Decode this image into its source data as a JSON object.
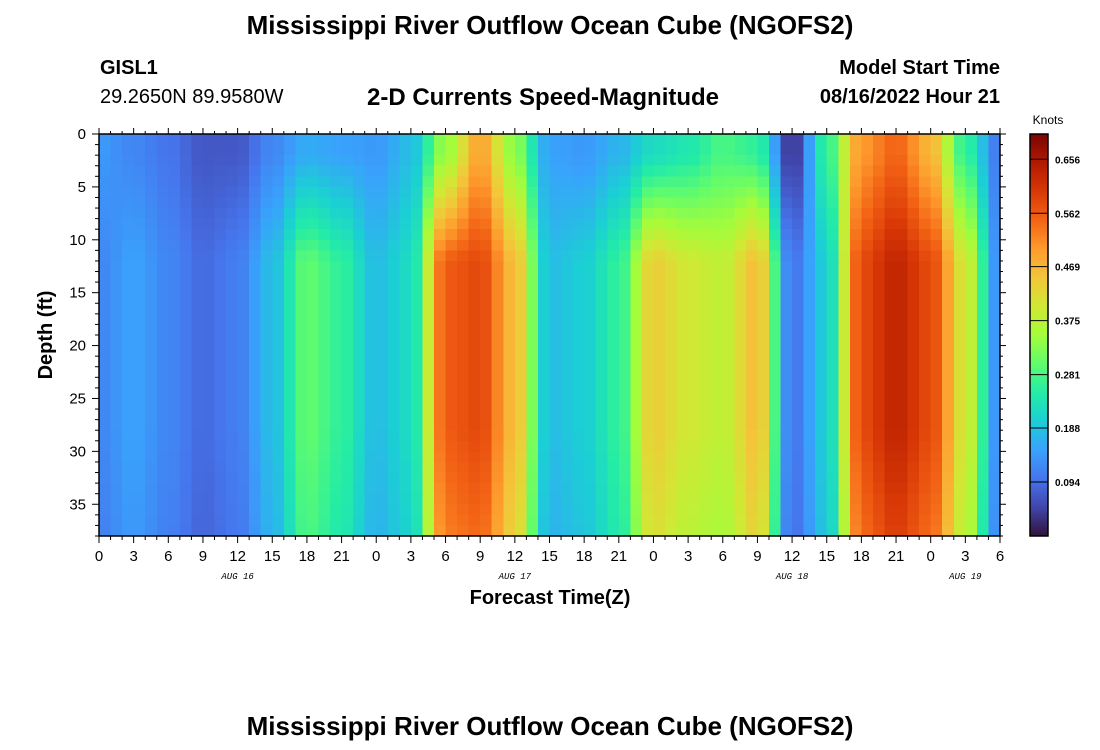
{
  "header": {
    "title": "Mississippi River Outflow Ocean Cube (NGOFS2)",
    "station_id": "GISL1",
    "station_coords": "29.2650N  89.9580W",
    "subtitle": "2-D Currents Speed-Magnitude",
    "start_label": "Model Start Time",
    "start_value": "08/16/2022 Hour 21"
  },
  "footer": {
    "next_title": "Mississippi River Outflow Ocean Cube (NGOFS2)"
  },
  "chart_data": {
    "type": "heatmap",
    "title": "2-D Currents Speed-Magnitude",
    "xlabel": "Forecast Time(Z)",
    "ylabel": "Depth (ft)",
    "x_tick_labels": [
      "0",
      "3",
      "6",
      "9",
      "12",
      "15",
      "18",
      "21",
      "0",
      "3",
      "6",
      "9",
      "12",
      "15",
      "18",
      "21",
      "0",
      "3",
      "6",
      "9",
      "12",
      "15",
      "18",
      "21",
      "0",
      "3",
      "6"
    ],
    "x_tick_hours": [
      0,
      3,
      6,
      9,
      12,
      15,
      18,
      21,
      24,
      27,
      30,
      33,
      36,
      39,
      42,
      45,
      48,
      51,
      54,
      57,
      60,
      63,
      66,
      69,
      72,
      75,
      78
    ],
    "date_labels": [
      {
        "label": "AUG 16",
        "hour": 12
      },
      {
        "label": "AUG 17",
        "hour": 36
      },
      {
        "label": "AUG 18",
        "hour": 60
      },
      {
        "label": "AUG 19",
        "hour": 75
      }
    ],
    "y_tick_labels": [
      "0",
      "5",
      "10",
      "15",
      "20",
      "25",
      "30",
      "35"
    ],
    "ylim": [
      0,
      38
    ],
    "xlim": [
      0,
      78
    ],
    "colorbar": {
      "units": "Knots",
      "labels": [
        "0.656",
        "0.562",
        "0.469",
        "0.375",
        "0.281",
        "0.188",
        "0.094"
      ],
      "range": [
        0.0,
        0.7
      ],
      "colors": [
        "#30123b",
        "#4145ab",
        "#4675ed",
        "#39a2fc",
        "#1bcfd4",
        "#24eca6",
        "#61fc6c",
        "#a4fc3b",
        "#d1e834",
        "#f3c63a",
        "#fe9b2d",
        "#f36315",
        "#d93806",
        "#b11901",
        "#7a0403"
      ]
    },
    "speed_knots_near_surface": [
      {
        "hour": 0,
        "speed": 0.14
      },
      {
        "hour": 3,
        "speed": 0.12
      },
      {
        "hour": 6,
        "speed": 0.1
      },
      {
        "hour": 9,
        "speed": 0.07
      },
      {
        "hour": 12,
        "speed": 0.07
      },
      {
        "hour": 15,
        "speed": 0.12
      },
      {
        "hour": 18,
        "speed": 0.16
      },
      {
        "hour": 21,
        "speed": 0.15
      },
      {
        "hour": 24,
        "speed": 0.14
      },
      {
        "hour": 27,
        "speed": 0.18
      },
      {
        "hour": 30,
        "speed": 0.34
      },
      {
        "hour": 33,
        "speed": 0.49
      },
      {
        "hour": 36,
        "speed": 0.33
      },
      {
        "hour": 39,
        "speed": 0.15
      },
      {
        "hour": 42,
        "speed": 0.14
      },
      {
        "hour": 45,
        "speed": 0.17
      },
      {
        "hour": 48,
        "speed": 0.22
      },
      {
        "hour": 51,
        "speed": 0.24
      },
      {
        "hour": 54,
        "speed": 0.28
      },
      {
        "hour": 57,
        "speed": 0.26
      },
      {
        "hour": 60,
        "speed": 0.03
      },
      {
        "hour": 63,
        "speed": 0.26
      },
      {
        "hour": 66,
        "speed": 0.5
      },
      {
        "hour": 69,
        "speed": 0.55
      },
      {
        "hour": 72,
        "speed": 0.47
      },
      {
        "hour": 75,
        "speed": 0.26
      },
      {
        "hour": 78,
        "speed": 0.1
      }
    ],
    "speed_knots_at_depth": [
      {
        "hour": 0,
        "speed": 0.12
      },
      {
        "hour": 3,
        "speed": 0.15
      },
      {
        "hour": 6,
        "speed": 0.12
      },
      {
        "hour": 9,
        "speed": 0.09
      },
      {
        "hour": 12,
        "speed": 0.11
      },
      {
        "hour": 15,
        "speed": 0.18
      },
      {
        "hour": 18,
        "speed": 0.3
      },
      {
        "hour": 21,
        "speed": 0.26
      },
      {
        "hour": 24,
        "speed": 0.18
      },
      {
        "hour": 27,
        "speed": 0.22
      },
      {
        "hour": 30,
        "speed": 0.56
      },
      {
        "hour": 33,
        "speed": 0.58
      },
      {
        "hour": 36,
        "speed": 0.46
      },
      {
        "hour": 39,
        "speed": 0.18
      },
      {
        "hour": 42,
        "speed": 0.2
      },
      {
        "hour": 45,
        "speed": 0.26
      },
      {
        "hour": 48,
        "speed": 0.44
      },
      {
        "hour": 51,
        "speed": 0.4
      },
      {
        "hour": 54,
        "speed": 0.38
      },
      {
        "hour": 57,
        "speed": 0.46
      },
      {
        "hour": 60,
        "speed": 0.1
      },
      {
        "hour": 63,
        "speed": 0.2
      },
      {
        "hour": 66,
        "speed": 0.58
      },
      {
        "hour": 69,
        "speed": 0.63
      },
      {
        "hour": 72,
        "speed": 0.58
      },
      {
        "hour": 75,
        "speed": 0.4
      },
      {
        "hour": 78,
        "speed": 0.12
      }
    ]
  }
}
